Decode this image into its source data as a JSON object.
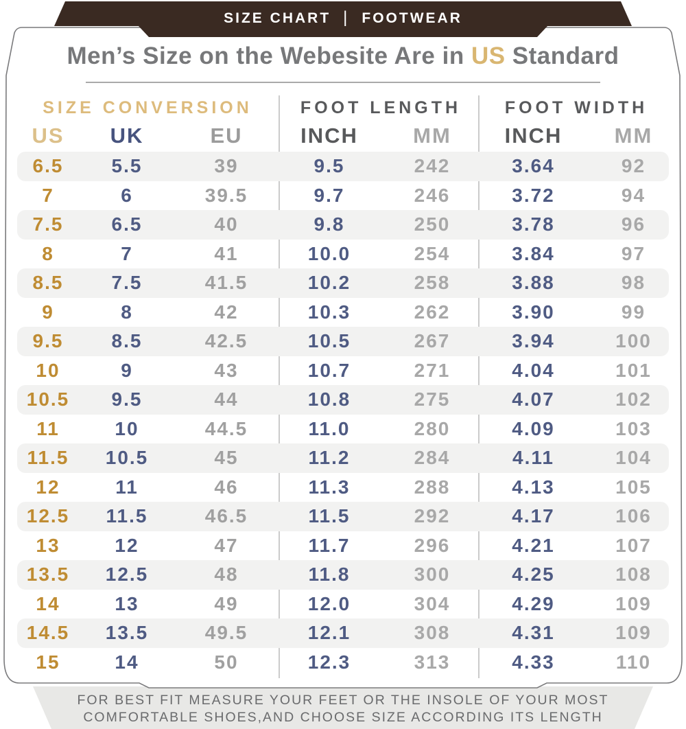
{
  "banner": {
    "left": "SIZE CHART",
    "separator": "|",
    "right": "FOOTWEAR"
  },
  "title": {
    "prefix": "Men’s Size on the Webesite Are in ",
    "highlight": "US",
    "suffix": " Standard"
  },
  "chart_data": {
    "type": "table",
    "title": "Men’s Size on the Webesite Are in US Standard",
    "groups": [
      "SIZE CONVERSION",
      "FOOT LENGTH",
      "FOOT WIDTH"
    ],
    "columns": [
      "US",
      "UK",
      "EU",
      "INCH",
      "MM",
      "INCH",
      "MM"
    ],
    "rows": [
      [
        "6.5",
        "5.5",
        "39",
        "9.5",
        "242",
        "3.64",
        "92"
      ],
      [
        "7",
        "6",
        "39.5",
        "9.7",
        "246",
        "3.72",
        "94"
      ],
      [
        "7.5",
        "6.5",
        "40",
        "9.8",
        "250",
        "3.78",
        "96"
      ],
      [
        "8",
        "7",
        "41",
        "10.0",
        "254",
        "3.84",
        "97"
      ],
      [
        "8.5",
        "7.5",
        "41.5",
        "10.2",
        "258",
        "3.88",
        "98"
      ],
      [
        "9",
        "8",
        "42",
        "10.3",
        "262",
        "3.90",
        "99"
      ],
      [
        "9.5",
        "8.5",
        "42.5",
        "10.5",
        "267",
        "3.94",
        "100"
      ],
      [
        "10",
        "9",
        "43",
        "10.7",
        "271",
        "4.04",
        "101"
      ],
      [
        "10.5",
        "9.5",
        "44",
        "10.8",
        "275",
        "4.07",
        "102"
      ],
      [
        "11",
        "10",
        "44.5",
        "11.0",
        "280",
        "4.09",
        "103"
      ],
      [
        "11.5",
        "10.5",
        "45",
        "11.2",
        "284",
        "4.11",
        "104"
      ],
      [
        "12",
        "11",
        "46",
        "11.3",
        "288",
        "4.13",
        "105"
      ],
      [
        "12.5",
        "11.5",
        "46.5",
        "11.5",
        "292",
        "4.17",
        "106"
      ],
      [
        "13",
        "12",
        "47",
        "11.7",
        "296",
        "4.21",
        "107"
      ],
      [
        "13.5",
        "12.5",
        "48",
        "11.8",
        "300",
        "4.25",
        "108"
      ],
      [
        "14",
        "13",
        "49",
        "12.0",
        "304",
        "4.29",
        "109"
      ],
      [
        "14.5",
        "13.5",
        "49.5",
        "12.1",
        "308",
        "4.31",
        "109"
      ],
      [
        "15",
        "14",
        "50",
        "12.3",
        "313",
        "4.33",
        "110"
      ]
    ]
  },
  "footer": {
    "line1": "FOR BEST FIT MEASURE YOUR FEET OR THE INSOLE OF YOUR MOST",
    "line2": "COMFORTABLE SHOES,AND CHOOSE SIZE ACCORDING ITS LENGTH"
  },
  "colors": {
    "banner_brown": "#3a2a22",
    "tan_gold_header": "#ddbb7c",
    "us_value_gold": "#bf8c33",
    "navy": "#4f5b83",
    "dark_gray": "#58595b",
    "mid_gray": "#a8a8a8",
    "stripe": "#f2f2f1",
    "footer_bg": "#e8e8e6",
    "card_border": "#7a7a7c"
  }
}
